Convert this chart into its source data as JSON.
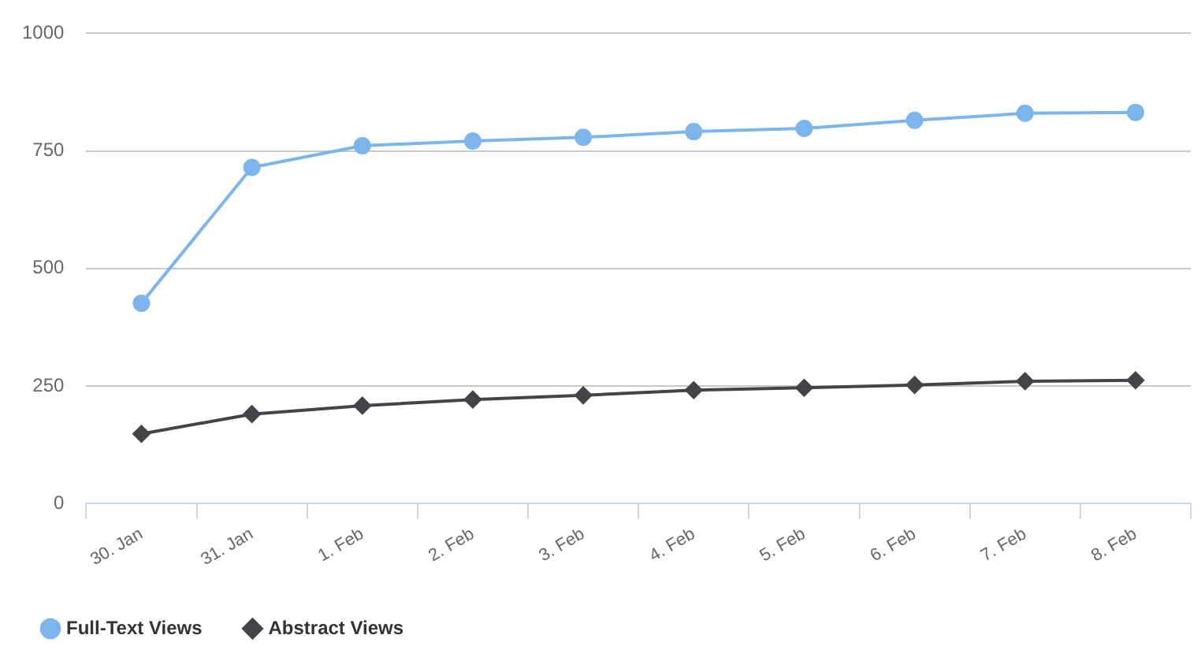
{
  "chart_data": {
    "type": "line",
    "categories": [
      "30. Jan",
      "31. Jan",
      "1. Feb",
      "2. Feb",
      "3. Feb",
      "4. Feb",
      "5. Feb",
      "6. Feb",
      "7. Feb",
      "8. Feb"
    ],
    "series": [
      {
        "name": "Full-Text Views",
        "color": "#7cb5ec",
        "marker": "circle",
        "values": [
          426,
          715,
          761,
          771,
          779,
          791,
          798,
          815,
          830,
          832
        ]
      },
      {
        "name": "Abstract Views",
        "color": "#434348",
        "marker": "diamond",
        "values": [
          148,
          190,
          208,
          221,
          230,
          241,
          246,
          252,
          260,
          262
        ]
      }
    ],
    "ylim": [
      0,
      1000
    ],
    "yticks": [
      0,
      250,
      500,
      750,
      1000
    ],
    "grid": "y",
    "legend": "bottom left",
    "line_style": "solid"
  }
}
